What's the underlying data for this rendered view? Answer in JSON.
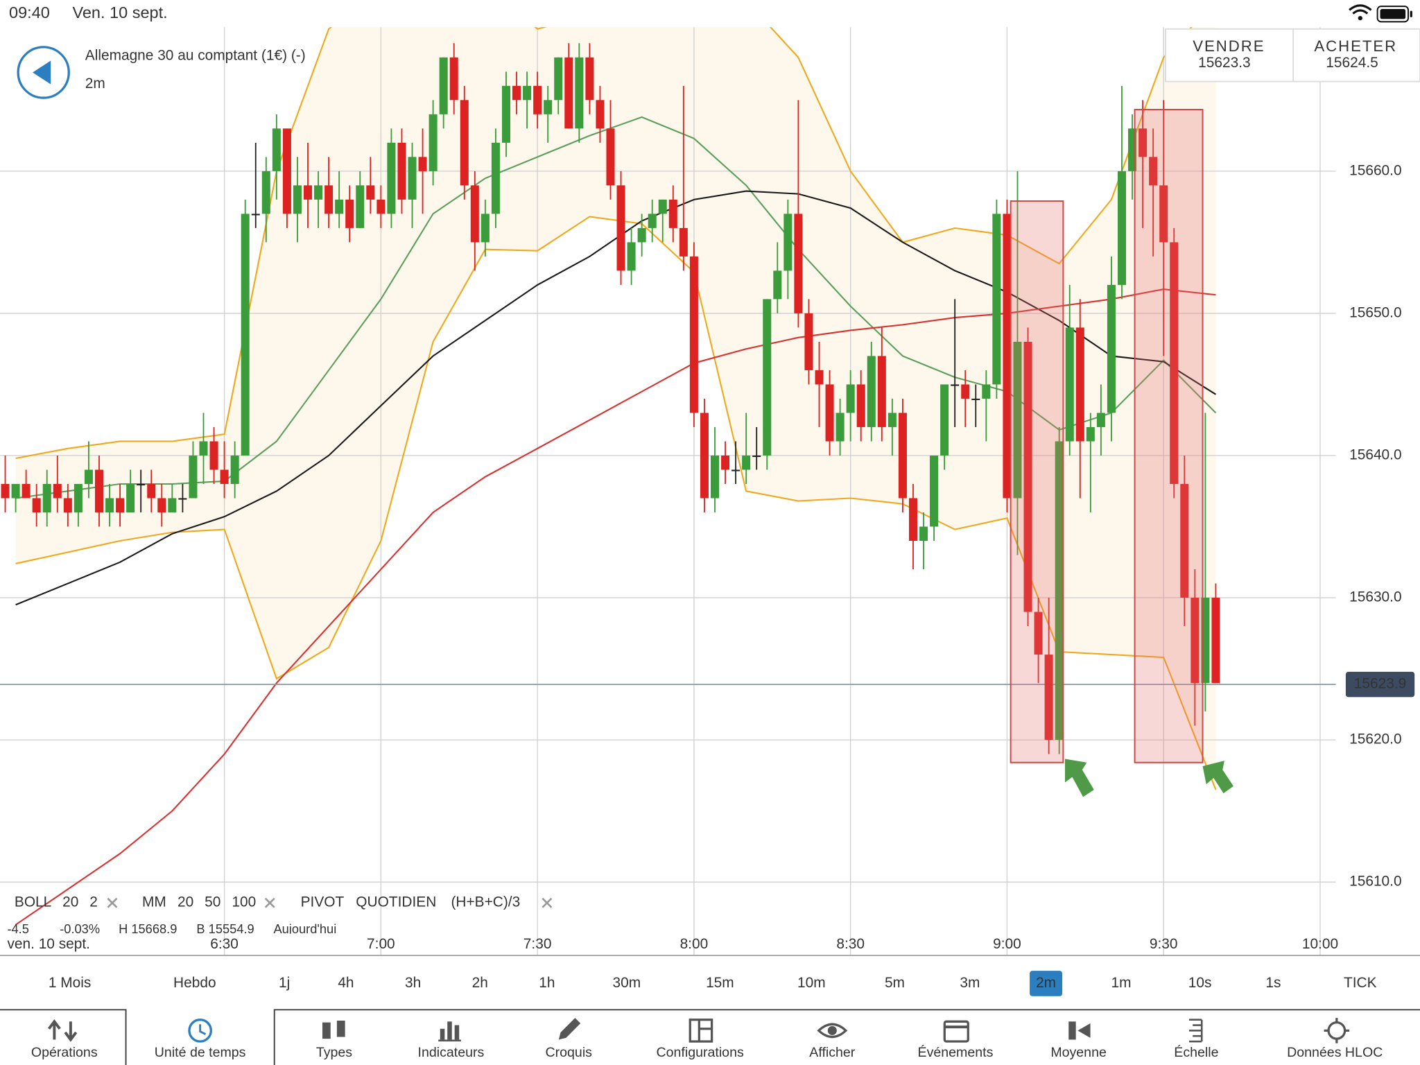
{
  "status_bar": {
    "time": "09:40",
    "date": "Ven. 10 sept."
  },
  "header": {
    "title": "Allemagne 30 au comptant (1€) (-)",
    "timeframe": "2m"
  },
  "quote": {
    "sell_label": "VENDRE",
    "sell": 15623.3,
    "buy_label": "ACHETER",
    "buy": 15624.5
  },
  "chart_data": {
    "type": "candlestick",
    "up_color": "#3a9c3a",
    "down_color": "#dd2222",
    "doji_color": "#222222",
    "grid": true,
    "xlim": [
      347,
      603
    ],
    "ylim": [
      15610,
      15670
    ],
    "xticks": [
      {
        "value": 390,
        "label": "6:30"
      },
      {
        "value": 420,
        "label": "7:00"
      },
      {
        "value": 450,
        "label": "7:30"
      },
      {
        "value": 480,
        "label": "8:00"
      },
      {
        "value": 510,
        "label": "8:30"
      },
      {
        "value": 540,
        "label": "9:00"
      },
      {
        "value": 570,
        "label": "9:30"
      },
      {
        "value": 600,
        "label": "10:00"
      }
    ],
    "yticks": [
      {
        "value": 15610,
        "label": "15610.0"
      },
      {
        "value": 15620,
        "label": "15620.0"
      },
      {
        "value": 15630,
        "label": "15630.0"
      },
      {
        "value": 15640,
        "label": "15640.0"
      },
      {
        "value": 15650,
        "label": "15650.0"
      },
      {
        "value": 15660,
        "label": "15660.0"
      }
    ],
    "x_date_label": "ven. 10 sept.",
    "last_price": 15623.9,
    "x": [
      348,
      350,
      352,
      354,
      356,
      358,
      360,
      362,
      364,
      366,
      368,
      370,
      372,
      374,
      376,
      378,
      380,
      382,
      384,
      386,
      388,
      390,
      392,
      394,
      396,
      398,
      400,
      402,
      404,
      406,
      408,
      410,
      412,
      414,
      416,
      418,
      420,
      422,
      424,
      426,
      428,
      430,
      432,
      434,
      436,
      438,
      440,
      442,
      444,
      446,
      448,
      450,
      452,
      454,
      456,
      458,
      460,
      462,
      464,
      466,
      468,
      470,
      472,
      474,
      476,
      478,
      480,
      482,
      484,
      486,
      488,
      490,
      492,
      494,
      496,
      498,
      500,
      502,
      504,
      506,
      508,
      510,
      512,
      514,
      516,
      518,
      520,
      522,
      524,
      526,
      528,
      530,
      532,
      534,
      536,
      538,
      540,
      542,
      544,
      546,
      548,
      550,
      552,
      554,
      556,
      558,
      560,
      562,
      564,
      566,
      568,
      570,
      572,
      574,
      576,
      578,
      580
    ],
    "ohlc": [
      [
        15638,
        15640,
        15636,
        15637
      ],
      [
        15637,
        15638,
        15636,
        15638
      ],
      [
        15638,
        15639,
        15637,
        15637
      ],
      [
        15637,
        15638,
        15635,
        15636
      ],
      [
        15636,
        15639,
        15635,
        15638
      ],
      [
        15638,
        15640,
        15636,
        15637
      ],
      [
        15637,
        15638,
        15635,
        15636
      ],
      [
        15636,
        15638,
        15635,
        15638
      ],
      [
        15638,
        15641,
        15637,
        15639
      ],
      [
        15639,
        15640,
        15635,
        15636
      ],
      [
        15636,
        15638,
        15635,
        15637
      ],
      [
        15637,
        15638,
        15635,
        15636
      ],
      [
        15636,
        15639,
        15636,
        15638
      ],
      [
        15638,
        15639,
        15636,
        15638
      ],
      [
        15638,
        15639,
        15636,
        15637
      ],
      [
        15637,
        15638,
        15635,
        15636
      ],
      [
        15636,
        15638,
        15636,
        15637
      ],
      [
        15637,
        15638,
        15636,
        15637
      ],
      [
        15637,
        15641,
        15637,
        15640
      ],
      [
        15640,
        15643,
        15638,
        15641
      ],
      [
        15641,
        15642,
        15638,
        15639
      ],
      [
        15639,
        15641,
        15637,
        15638
      ],
      [
        15638,
        15641,
        15637,
        15640
      ],
      [
        15640,
        15658,
        15640,
        15657
      ],
      [
        15657,
        15662,
        15656,
        15657
      ],
      [
        15657,
        15661,
        15655,
        15660
      ],
      [
        15660,
        15664,
        15658,
        15663
      ],
      [
        15663,
        15663,
        15656,
        15657
      ],
      [
        15657,
        15661,
        15655,
        15659
      ],
      [
        15659,
        15662,
        15656,
        15658
      ],
      [
        15658,
        15660,
        15656,
        15659
      ],
      [
        15659,
        15661,
        15656,
        15657
      ],
      [
        15657,
        15660,
        15656,
        15658
      ],
      [
        15658,
        15659,
        15655,
        15656
      ],
      [
        15656,
        15660,
        15656,
        15659
      ],
      [
        15659,
        15661,
        15657,
        15658
      ],
      [
        15658,
        15659,
        15656,
        15657
      ],
      [
        15657,
        15663,
        15656,
        15662
      ],
      [
        15662,
        15663,
        15657,
        15658
      ],
      [
        15658,
        15662,
        15656,
        15661
      ],
      [
        15661,
        15663,
        15657,
        15660
      ],
      [
        15660,
        15665,
        15659,
        15664
      ],
      [
        15664,
        15668,
        15663,
        15668
      ],
      [
        15668,
        15669,
        15664,
        15665
      ],
      [
        15665,
        15666,
        15658,
        15659
      ],
      [
        15659,
        15660,
        15653,
        15655
      ],
      [
        15655,
        15658,
        15654,
        15657
      ],
      [
        15657,
        15663,
        15656,
        15662
      ],
      [
        15662,
        15667,
        15661,
        15666
      ],
      [
        15666,
        15667,
        15664,
        15665
      ],
      [
        15665,
        15667,
        15663,
        15666
      ],
      [
        15666,
        15667,
        15663,
        15664
      ],
      [
        15664,
        15666,
        15662,
        15665
      ],
      [
        15665,
        15668,
        15664,
        15668
      ],
      [
        15668,
        15669,
        15663,
        15663
      ],
      [
        15663,
        15669,
        15662,
        15668
      ],
      [
        15668,
        15669,
        15664,
        15665
      ],
      [
        15665,
        15666,
        15662,
        15663
      ],
      [
        15663,
        15665,
        15658,
        15659
      ],
      [
        15659,
        15660,
        15652,
        15653
      ],
      [
        15653,
        15656,
        15652,
        15655
      ],
      [
        15655,
        15657,
        15654,
        15656
      ],
      [
        15656,
        15658,
        15655,
        15657
      ],
      [
        15657,
        15658,
        15655,
        15658
      ],
      [
        15658,
        15659,
        15655,
        15656
      ],
      [
        15656,
        15666,
        15653,
        15654
      ],
      [
        15654,
        15655,
        15642,
        15643
      ],
      [
        15643,
        15644,
        15636,
        15637
      ],
      [
        15637,
        15642,
        15636,
        15640
      ],
      [
        15640,
        15641,
        15638,
        15639
      ],
      [
        15639,
        15641,
        15638,
        15639
      ],
      [
        15639,
        15643,
        15638,
        15640
      ],
      [
        15640,
        15642,
        15639,
        15640
      ],
      [
        15640,
        15651,
        15639,
        15651
      ],
      [
        15651,
        15655,
        15650,
        15653
      ],
      [
        15653,
        15658,
        15651,
        15657
      ],
      [
        15657,
        15665,
        15649,
        15650
      ],
      [
        15650,
        15651,
        15645,
        15646
      ],
      [
        15646,
        15648,
        15642,
        15645
      ],
      [
        15645,
        15646,
        15640,
        15641
      ],
      [
        15641,
        15644,
        15640,
        15643
      ],
      [
        15643,
        15646,
        15641,
        15645
      ],
      [
        15645,
        15646,
        15641,
        15642
      ],
      [
        15642,
        15648,
        15641,
        15647
      ],
      [
        15647,
        15649,
        15641,
        15642
      ],
      [
        15642,
        15644,
        15640,
        15643
      ],
      [
        15643,
        15644,
        15636,
        15637
      ],
      [
        15637,
        15638,
        15632,
        15634
      ],
      [
        15634,
        15636,
        15632,
        15635
      ],
      [
        15635,
        15640,
        15634,
        15640
      ],
      [
        15640,
        15645,
        15639,
        15645
      ],
      [
        15645,
        15651,
        15642,
        15645
      ],
      [
        15645,
        15646,
        15642,
        15644
      ],
      [
        15644,
        15645,
        15642,
        15644
      ],
      [
        15644,
        15646,
        15641,
        15645
      ],
      [
        15645,
        15658,
        15644,
        15657
      ],
      [
        15657,
        15658,
        15636,
        15637
      ],
      [
        15637,
        15660,
        15633,
        15648
      ],
      [
        15648,
        15649,
        15628,
        15629
      ],
      [
        15629,
        15630,
        15624,
        15626
      ],
      [
        15626,
        15630,
        15619,
        15620
      ],
      [
        15620,
        15642,
        15619,
        15641
      ],
      [
        15641,
        15652,
        15640,
        15649
      ],
      [
        15649,
        15651,
        15637,
        15641
      ],
      [
        15641,
        15643,
        15636,
        15642
      ],
      [
        15642,
        15645,
        15640,
        15643
      ],
      [
        15643,
        15654,
        15641,
        15652
      ],
      [
        15652,
        15666,
        15651,
        15660
      ],
      [
        15660,
        15664,
        15658,
        15663
      ],
      [
        15663,
        15665,
        15656,
        15661
      ],
      [
        15661,
        15663,
        15654,
        15659
      ],
      [
        15659,
        15665,
        15647,
        15655
      ],
      [
        15655,
        15656,
        15637,
        15638
      ],
      [
        15638,
        15640,
        15628,
        15630
      ],
      [
        15630,
        15632,
        15621,
        15624
      ],
      [
        15624,
        15643,
        15622,
        15630
      ],
      [
        15630,
        15631,
        15624,
        15624
      ]
    ],
    "band_fill": "#fdf7ec",
    "line_x": [
      350,
      360,
      370,
      380,
      390,
      400,
      410,
      420,
      430,
      440,
      450,
      460,
      470,
      480,
      490,
      500,
      510,
      520,
      530,
      540,
      550,
      560,
      570,
      580
    ],
    "lines": [
      {
        "color": "#f0a81c",
        "values": [
          15639.8,
          15640.5,
          15641,
          15641,
          15641.5,
          15660,
          15670,
          15673,
          15674,
          15673,
          15670,
          15671,
          15672,
          15672,
          15672,
          15668,
          15660,
          15655,
          15656,
          15655.5,
          15653.5,
          15658,
          15668,
          15672
        ]
      },
      {
        "color": "#f0a81c",
        "values": [
          15632.4,
          15633.2,
          15634,
          15634.6,
          15634.8,
          15624.3,
          15626.5,
          15634,
          15648,
          15654.5,
          15654.4,
          15656.8,
          15656.3,
          15652.9,
          15637.5,
          15636.8,
          15637,
          15636.6,
          15634.8,
          15635.6,
          15626.2,
          15626,
          15625.8,
          15616.5
        ]
      },
      {
        "color": "#5c9e5c",
        "values": [
          15637,
          15637.5,
          15638,
          15638,
          15638.2,
          15641,
          15646,
          15651,
          15657,
          15659.5,
          15661,
          15662.5,
          15663.8,
          15662.3,
          15659,
          15654.5,
          15650.5,
          15647,
          15645.5,
          15644.5,
          15641.8,
          15643,
          15646.7,
          15643
        ]
      },
      {
        "color": "#1a1a1a",
        "values": [
          15629.5,
          15631,
          15632.5,
          15634.5,
          15635.7,
          15637.5,
          15640,
          15643.5,
          15647,
          15649.5,
          15652,
          15654,
          15656.5,
          15658,
          15658.6,
          15658.4,
          15657.4,
          15655,
          15653,
          15651.5,
          15649.5,
          15647,
          15646.6,
          15644.3
        ]
      },
      {
        "color": "#d93030",
        "values": [
          15607,
          15609.5,
          15612,
          15615,
          15619,
          15624,
          15628,
          15632,
          15636,
          15638.5,
          15640.5,
          15642.5,
          15644.5,
          15646.5,
          15647.5,
          15648.3,
          15648.8,
          15649.2,
          15649.7,
          15650,
          15650.5,
          15651,
          15651.7,
          15651.3
        ]
      }
    ]
  },
  "indicator_legend": [
    {
      "text": "BOLL",
      "color": "#666666"
    },
    {
      "text": 20,
      "color": "#333333"
    },
    {
      "text": 2,
      "color": "#333333"
    },
    {
      "text": "MM",
      "color": "#666666"
    },
    {
      "text": 20,
      "color": "#3a9c3a"
    },
    {
      "text": 50,
      "color": "#333333"
    },
    {
      "text": 100,
      "color": "#dd2222"
    },
    {
      "text": "PIVOT",
      "color": "#666666"
    },
    {
      "text": "QUOTIDIEN",
      "color": "#333333"
    },
    {
      "text": "(H+B+C)/3",
      "color": "#333333"
    }
  ],
  "summary_row": [
    {
      "text": "-4.5",
      "color": "#dd2222"
    },
    {
      "text": "-0.03%",
      "color": "#dd2222"
    },
    {
      "text": "H 15668.9",
      "color": "#333333"
    },
    {
      "text": "B 15554.9",
      "color": "#333333"
    },
    {
      "text": "Aujourd'hui",
      "color": "#666666"
    }
  ],
  "timeframes": {
    "items": [
      "1 Mois",
      "Hebdo",
      "1j",
      "4h",
      "3h",
      "2h",
      "1h",
      "30m",
      "15m",
      "10m",
      "5m",
      "3m",
      "2m",
      "1m",
      "10s",
      "1s",
      "TICK"
    ],
    "selected": 12
  },
  "toolbar": {
    "items": [
      "Opérations",
      "Unité de temps",
      "Types",
      "Indicateurs",
      "Croquis",
      "Configurations",
      "Afficher",
      "Événements",
      "Moyenne",
      "Échelle",
      "Données HLOC"
    ],
    "selected": 1
  }
}
